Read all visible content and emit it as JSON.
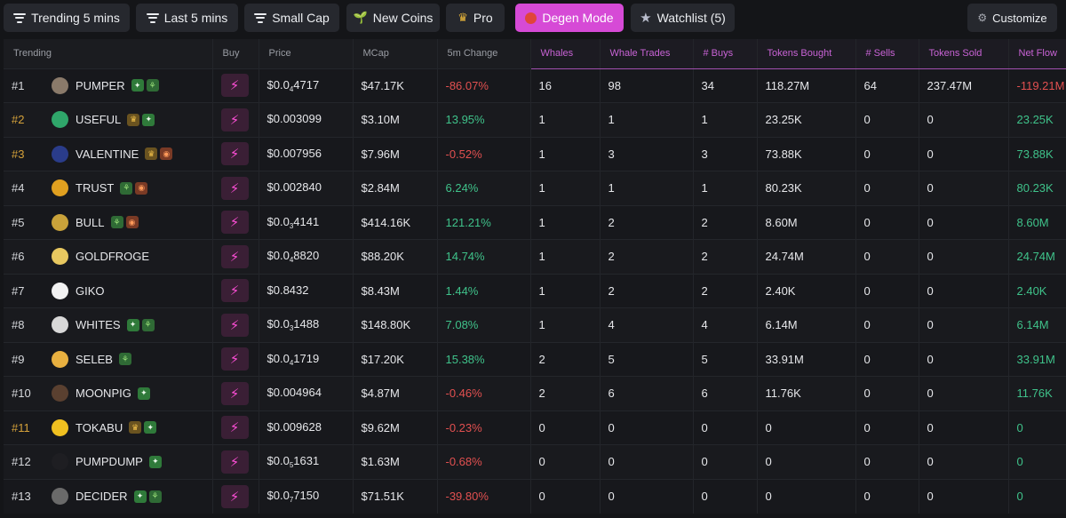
{
  "toolbar": {
    "trending": "Trending 5 mins",
    "last": "Last 5 mins",
    "small_cap": "Small Cap",
    "new_coins": "New Coins",
    "pro": "Pro",
    "degen": "Degen Mode",
    "watchlist": "Watchlist (5)",
    "customize": "Customize"
  },
  "colors": {
    "accent": "#d64ad6",
    "positive": "#3fc28a",
    "negative": "#e25050",
    "gold_rank": "#d4a13a",
    "buy_icon": "#ff4fd8"
  },
  "columns": [
    "Trending",
    "Buy",
    "Price",
    "MCap",
    "5m Change",
    "Whales",
    "Whale Trades",
    "# Buys",
    "Tokens Bought",
    "# Sells",
    "Tokens Sold",
    "Net Flow"
  ],
  "rows": [
    {
      "rank": "#1",
      "gold": false,
      "name": "PUMPER",
      "badges": [
        "pill",
        "sprout"
      ],
      "price_pre": "$0.0",
      "price_sub": "4",
      "price_post": "4717",
      "mcap": "$47.17K",
      "change": "-86.07%",
      "whales": "16",
      "whale_trades": "98",
      "buys": "34",
      "tokens_bought": "118.27M",
      "sells": "64",
      "tokens_sold": "237.47M",
      "net_flow": "-119.21M",
      "avatar": "#8a7a6a"
    },
    {
      "rank": "#2",
      "gold": true,
      "name": "USEFUL",
      "badges": [
        "crown",
        "pill"
      ],
      "price_pre": "$0.003099",
      "price_sub": "",
      "price_post": "",
      "mcap": "$3.10M",
      "change": "13.95%",
      "whales": "1",
      "whale_trades": "1",
      "buys": "1",
      "tokens_bought": "23.25K",
      "sells": "0",
      "tokens_sold": "0",
      "net_flow": "23.25K",
      "avatar": "#2fa66a"
    },
    {
      "rank": "#3",
      "gold": true,
      "name": "VALENTINE",
      "badges": [
        "crown",
        "fire"
      ],
      "price_pre": "$0.007956",
      "price_sub": "",
      "price_post": "",
      "mcap": "$7.96M",
      "change": "-0.52%",
      "whales": "1",
      "whale_trades": "3",
      "buys": "3",
      "tokens_bought": "73.88K",
      "sells": "0",
      "tokens_sold": "0",
      "net_flow": "73.88K",
      "avatar": "#2a3c8a"
    },
    {
      "rank": "#4",
      "gold": false,
      "name": "TRUST",
      "badges": [
        "sprout",
        "fire"
      ],
      "price_pre": "$0.002840",
      "price_sub": "",
      "price_post": "",
      "mcap": "$2.84M",
      "change": "6.24%",
      "whales": "1",
      "whale_trades": "1",
      "buys": "1",
      "tokens_bought": "80.23K",
      "sells": "0",
      "tokens_sold": "0",
      "net_flow": "80.23K",
      "avatar": "#e0a020"
    },
    {
      "rank": "#5",
      "gold": false,
      "name": "BULL",
      "badges": [
        "sprout",
        "fire"
      ],
      "price_pre": "$0.0",
      "price_sub": "3",
      "price_post": "4141",
      "mcap": "$414.16K",
      "change": "121.21%",
      "whales": "1",
      "whale_trades": "2",
      "buys": "2",
      "tokens_bought": "8.60M",
      "sells": "0",
      "tokens_sold": "0",
      "net_flow": "8.60M",
      "avatar": "#c9a23a"
    },
    {
      "rank": "#6",
      "gold": false,
      "name": "GOLDFROGE",
      "badges": [],
      "price_pre": "$0.0",
      "price_sub": "4",
      "price_post": "8820",
      "mcap": "$88.20K",
      "change": "14.74%",
      "whales": "1",
      "whale_trades": "2",
      "buys": "2",
      "tokens_bought": "24.74M",
      "sells": "0",
      "tokens_sold": "0",
      "net_flow": "24.74M",
      "avatar": "#e8c860"
    },
    {
      "rank": "#7",
      "gold": false,
      "name": "GIKO",
      "badges": [],
      "price_pre": "$0.8432",
      "price_sub": "",
      "price_post": "",
      "mcap": "$8.43M",
      "change": "1.44%",
      "whales": "1",
      "whale_trades": "2",
      "buys": "2",
      "tokens_bought": "2.40K",
      "sells": "0",
      "tokens_sold": "0",
      "net_flow": "2.40K",
      "avatar": "#f2f2f2"
    },
    {
      "rank": "#8",
      "gold": false,
      "name": "WHITES",
      "badges": [
        "pill",
        "sprout"
      ],
      "price_pre": "$0.0",
      "price_sub": "3",
      "price_post": "1488",
      "mcap": "$148.80K",
      "change": "7.08%",
      "whales": "1",
      "whale_trades": "4",
      "buys": "4",
      "tokens_bought": "6.14M",
      "sells": "0",
      "tokens_sold": "0",
      "net_flow": "6.14M",
      "avatar": "#d8d8d8"
    },
    {
      "rank": "#9",
      "gold": false,
      "name": "SELEB",
      "badges": [
        "sprout"
      ],
      "price_pre": "$0.0",
      "price_sub": "4",
      "price_post": "1719",
      "mcap": "$17.20K",
      "change": "15.38%",
      "whales": "2",
      "whale_trades": "5",
      "buys": "5",
      "tokens_bought": "33.91M",
      "sells": "0",
      "tokens_sold": "0",
      "net_flow": "33.91M",
      "avatar": "#e8b040"
    },
    {
      "rank": "#10",
      "gold": false,
      "name": "MOONPIG",
      "badges": [
        "pill"
      ],
      "price_pre": "$0.004964",
      "price_sub": "",
      "price_post": "",
      "mcap": "$4.87M",
      "change": "-0.46%",
      "whales": "2",
      "whale_trades": "6",
      "buys": "6",
      "tokens_bought": "11.76K",
      "sells": "0",
      "tokens_sold": "0",
      "net_flow": "11.76K",
      "avatar": "#5a4030"
    },
    {
      "rank": "#11",
      "gold": true,
      "name": "TOKABU",
      "badges": [
        "crown",
        "pill"
      ],
      "price_pre": "$0.009628",
      "price_sub": "",
      "price_post": "",
      "mcap": "$9.62M",
      "change": "-0.23%",
      "whales": "0",
      "whale_trades": "0",
      "buys": "0",
      "tokens_bought": "0",
      "sells": "0",
      "tokens_sold": "0",
      "net_flow": "0",
      "avatar": "#f0c020"
    },
    {
      "rank": "#12",
      "gold": false,
      "name": "PUMPDUMP",
      "badges": [
        "pill"
      ],
      "price_pre": "$0.0",
      "price_sub": "5",
      "price_post": "1631",
      "mcap": "$1.63M",
      "change": "-0.68%",
      "whales": "0",
      "whale_trades": "0",
      "buys": "0",
      "tokens_bought": "0",
      "sells": "0",
      "tokens_sold": "0",
      "net_flow": "0",
      "avatar": "#1e1e22"
    },
    {
      "rank": "#13",
      "gold": false,
      "name": "DECIDER",
      "badges": [
        "pill",
        "sprout"
      ],
      "price_pre": "$0.0",
      "price_sub": "7",
      "price_post": "7150",
      "mcap": "$71.51K",
      "change": "-39.80%",
      "whales": "0",
      "whale_trades": "0",
      "buys": "0",
      "tokens_bought": "0",
      "sells": "0",
      "tokens_sold": "0",
      "net_flow": "0",
      "avatar": "#6a6a6a"
    }
  ]
}
